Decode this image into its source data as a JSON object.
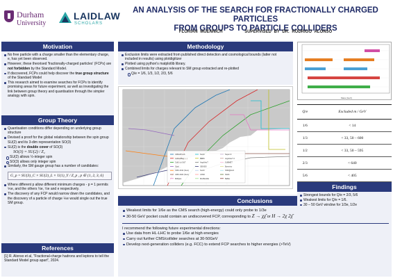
{
  "header": {
    "durham_name": "Durham",
    "durham_sub": "University",
    "laidlaw_name": "LAIDLAW",
    "laidlaw_sub": "SCHOLARS",
    "title_line1": "AN ANALYSIS OF THE SEARCH FOR FRACTIONALLY CHARGED PARTICLES",
    "title_line2": "FROM  GROUPS TO PARTICLE COLLIDERS",
    "author": "FLORIAN MUENNICH",
    "supervisor": "SUPERVISED BY DR. RODRIGO ALONSO"
  },
  "motivation": {
    "heading": "Motivation",
    "b1": "No free particle with a charge smaller than the elementary charge, e, has yet been observed.",
    "b2a": "However, these theorised 'fractionally-charged particles' (FCPs) are ",
    "b2b": "not forbidden",
    "b2c": " by the Standard Model.",
    "b3a": "If discovered, FCPs could help discover the ",
    "b3b": "true group structure",
    "b3c": " of the Standard Model",
    "b4": "This research aimed to examine searches for FCPs to identify promising areas for future experiment, as well as investigating the link between group theory and quantisation through the simpler analogy with spin."
  },
  "group_theory": {
    "heading": "Group Theory",
    "b1": "Quantisation conditions differ depending on underlying group structure",
    "b2": "Devised a proof for the global relationship between the spin group SU(2) and its 3-dim representation SO(3)",
    "b3a": "SU(2) is the ",
    "b3b": "double cover",
    "b3c": " of SO(3)",
    "eq1": "SO(3) = SU(2) / Z₂",
    "s1": "SU(2) allows ½-integer spin",
    "s2": "SO(3) allows only integer spin",
    "b4": "Similarly, the SM gauge group has a number of candidates:",
    "eq2": "G_p = SU(3)_C × SU(2)_L × U(1)_Y / Z_p ,  p ∈ {1, 2, 3, 6}",
    "b5": "Where different p allow different minimum charges - p = 1 permits ⅙e, and the others ⅓e, ½e and e respectively.",
    "b6": "The discovery of any FCP would narrow down the candidates, and the discovery of a particle of charge ⅙e would single out the true SM group."
  },
  "references": {
    "heading": "References",
    "r1": "[1]  R. Alonso et al, \"Fractional-charge hadrons and leptons to tell the Standard Model group apart\", 2024."
  },
  "methodology": {
    "heading": "Methodology",
    "b1": "Exclusion limits were extracted from published direct detection and cosmological bounds (latter not included in results) using plotdigitizer",
    "b2": "Plotted using python's matplotlib library.",
    "b3": "Combined limits for charges relevant to SM group extracted and re-plotted",
    "s1": "Q/e = 1/6, 1/3, 1/2, 2/3, 5/6"
  },
  "exclusion_plot": {
    "legend": [
      "CMS/ATLAS",
      "Lattice/Bag (...)",
      "Colli. (o) S&T",
      "Opal",
      "CMS 2013 (Sum)",
      "CMS 2024 (Sum)",
      "MilliQan",
      "SLAC",
      "BEBC",
      "ArgoNeuT",
      "SENSEI",
      "SLAC",
      "LSND",
      "MiniBooNE",
      "Super-K",
      "ArgoNeuT 2",
      "SUBMET",
      "Borexino",
      "SND@LHC",
      "NA64",
      "BaBar"
    ]
  },
  "conclusions": {
    "heading": "Conclusions",
    "b1": "Weakest limits for 1/6e as the CMS search (high-energy) could only probe to 1/3e",
    "b2a": "30-50 GeV pocket could contain an undiscovered FCP, corresponding to ",
    "b2eq1": "Z → χχ̄",
    "b2or": " or ",
    "b2eq2": "H → 2χ 2χ̄",
    "rec": "I recommend the following future experimental directions:",
    "r1": "Use data from HL-LHC to probe 1/6e at high energies",
    "r2": "Carry out further CMS/collider searches at 30-50GeV",
    "r3": "Develop next-generation colliders (e.g. FCC) to extend FCP searches to higher energies (>TeV)"
  },
  "bar_chart": {
    "xlabel": "Mass (GeV)",
    "rows": [
      {
        "color": "#d14fa5",
        "value": "1/6"
      },
      {
        "color": "#e67e22",
        "value": "1/3"
      },
      {
        "color": "#4aa0d5",
        "value": "1/2"
      },
      {
        "color": "#d64541",
        "value": "2/3"
      },
      {
        "color": "#3fae49",
        "value": "5/6"
      }
    ]
  },
  "results_table": {
    "col1": "Q/e",
    "col2": "Excluded m / GeV",
    "rows": [
      {
        "q": "1/6",
        "m": "< 14"
      },
      {
        "q": "1/3",
        "m": "< 33, 50 – 600"
      },
      {
        "q": "1/2",
        "m": "< 33, 50 – 595"
      },
      {
        "q": "2/3",
        "m": "< 640"
      },
      {
        "q": "5/6",
        "m": "< 405"
      }
    ]
  },
  "findings": {
    "heading": "Findings",
    "b1": "Strongest bounds for Q/e = 2/3, 5/6",
    "b2": "Weakest limits for Q/e = 1/6.",
    "b3": "30 – 50 GeV window for 1/3e, 1/2e"
  },
  "colors": {
    "heading_bg": "#2a3a7c",
    "panel_bg": "#eef0f7",
    "title": "#1e2a66",
    "durham_purple": "#6a2c74"
  }
}
